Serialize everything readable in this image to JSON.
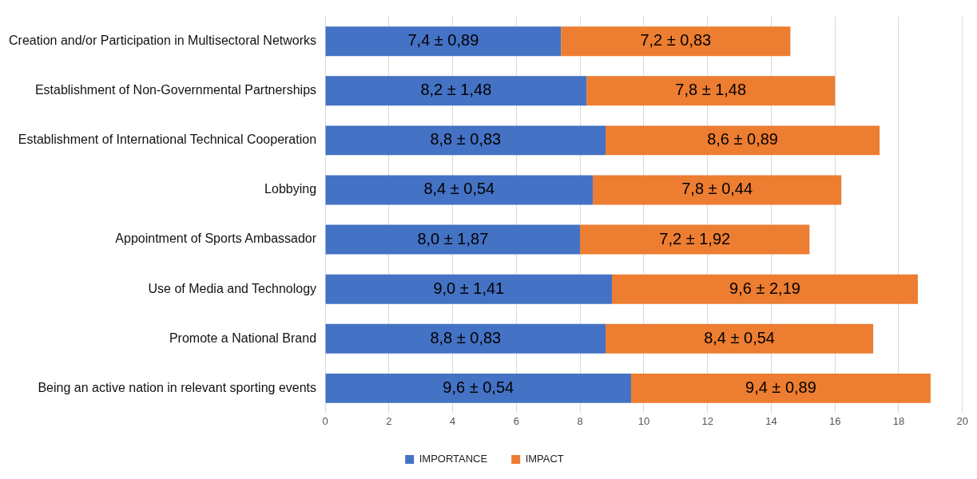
{
  "chart_data": {
    "type": "bar",
    "orientation": "horizontal",
    "stacked": true,
    "categories": [
      "Creation and/or Participation in Multisectoral Networks",
      "Establishment of Non-Governmental Partnerships",
      "Establishment of International Technical Cooperation",
      "Lobbying",
      "Appointment of Sports Ambassador",
      "Use of Media and Technology",
      "Promote a National Brand",
      "Being an active nation in relevant sporting events"
    ],
    "series": [
      {
        "name": "IMPORTANCE",
        "color": "#4472c4",
        "values": [
          7.4,
          8.2,
          8.8,
          8.4,
          8.0,
          9.0,
          8.8,
          9.6
        ],
        "value_labels": [
          "7,4 ± 0,89",
          "8,2 ± 1,48",
          "8,8 ± 0,83",
          "8,4 ± 0,54",
          "8,0 ± 1,87",
          "9,0 ± 1,41",
          "8,8 ± 0,83",
          "9,6 ± 0,54"
        ]
      },
      {
        "name": "IMPACT",
        "color": "#ed7d31",
        "values": [
          7.2,
          7.8,
          8.6,
          7.8,
          7.2,
          9.6,
          8.4,
          9.4
        ],
        "value_labels": [
          "7,2 ± 0,83",
          "7,8 ± 1,48",
          "8,6 ± 0,89",
          "7,8 ± 0,44",
          "7,2 ± 1,92",
          "9,6 ± 2,19",
          "8,4 ± 0,54",
          "9,4 ± 0,89"
        ]
      }
    ],
    "xlim": [
      0,
      20
    ],
    "xticks": [
      0,
      2,
      4,
      6,
      8,
      10,
      12,
      14,
      16,
      18,
      20
    ],
    "grid": "x",
    "legend": "bottom"
  }
}
